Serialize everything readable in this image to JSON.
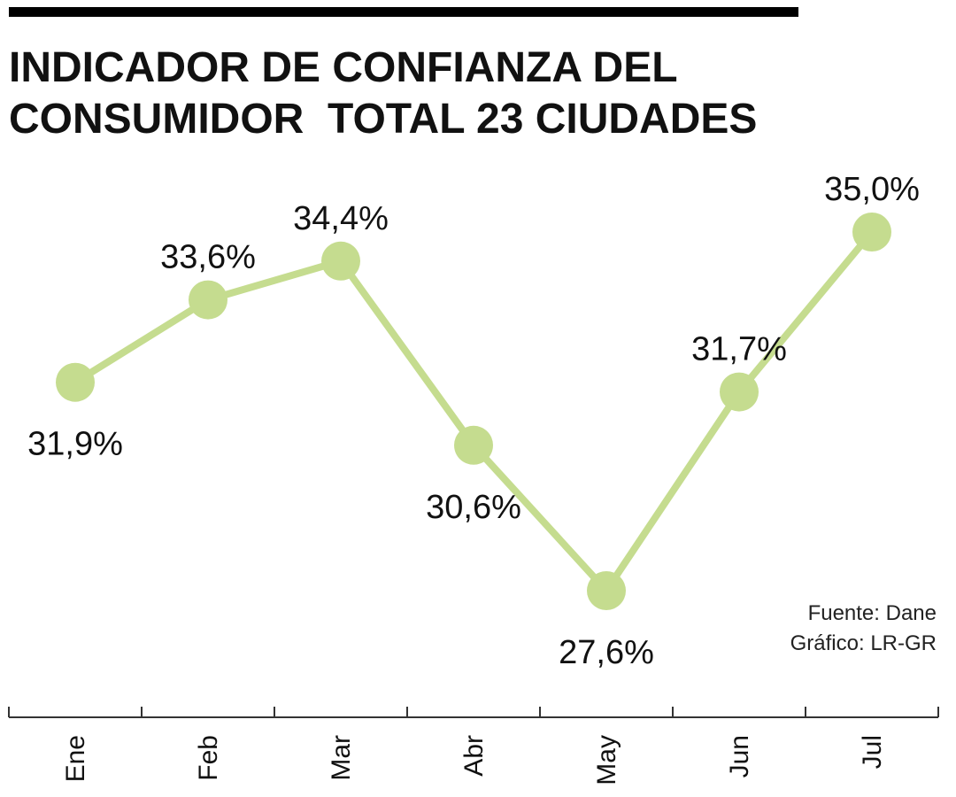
{
  "title": {
    "line1": "INDICADOR DE CONFIANZA DEL",
    "line2": "CONSUMIDOR  TOTAL 23 CIUDADES"
  },
  "source": {
    "fuente": "Fuente: Dane",
    "grafico": "Gráfico: LR-GR"
  },
  "colors": {
    "line": "#c5dc8f",
    "marker": "#c5dc8f",
    "axis": "#333333",
    "text": "#111111"
  },
  "chart_data": {
    "type": "line",
    "categories": [
      "Ene",
      "Feb",
      "Mar",
      "Abr",
      "May",
      "Jun",
      "Jul"
    ],
    "values": [
      31.9,
      33.6,
      34.4,
      30.6,
      27.6,
      31.7,
      35.0
    ],
    "value_labels": [
      "31,9%",
      "33,6%",
      "34,4%",
      "30,6%",
      "27,6%",
      "31,7%",
      "35,0%"
    ],
    "label_positions": [
      "below",
      "above",
      "above",
      "below",
      "below",
      "above",
      "above"
    ],
    "grid": false,
    "legend": "none"
  }
}
